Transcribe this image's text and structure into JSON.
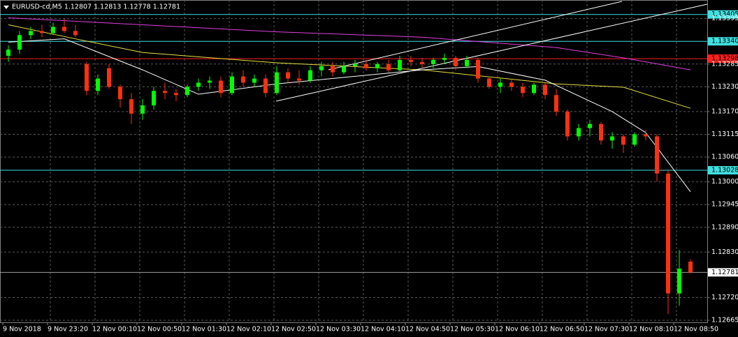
{
  "chart_data": {
    "type": "candlestick",
    "title": "EURUSD-cd,M5  1.12807 1.12813 1.12778 1.12781",
    "ylim": [
      1.1266,
      1.1344
    ],
    "yticks": [
      1.13395,
      1.13285,
      {
        "value": 1.1323,
        "label": "1.13230"
      },
      {
        "value": 1.1317,
        "label": "1.13170"
      },
      1.13115,
      {
        "value": 1.1306,
        "label": "1.13060"
      },
      {
        "value": 1.13,
        "label": "1.13000"
      },
      1.12945,
      {
        "value": 1.1289,
        "label": "1.12890"
      },
      {
        "value": 1.1283,
        "label": "1.12830"
      },
      {
        "value": 1.1272,
        "label": "1.12720"
      },
      1.12665
    ],
    "x_labels": [
      "9 Nov 2018",
      "9 Nov 23:20",
      "12 Nov 00:10",
      "12 Nov 00:50",
      "12 Nov 01:30",
      "12 Nov 02:10",
      "12 Nov 02:50",
      "12 Nov 03:30",
      "12 Nov 04:10",
      "12 Nov 04:50",
      "12 Nov 05:30",
      "12 Nov 06:10",
      "12 Nov 06:50",
      "12 Nov 07:30",
      "12 Nov 08:10",
      "12 Nov 08:50"
    ],
    "grid": true,
    "bull_color": "#00ff00",
    "bear_color": "#ff3010",
    "open": [
      1.13305,
      1.1332,
      1.13355,
      1.13365,
      1.1336,
      1.13375,
      1.13365,
      1.13285,
      1.1322,
      1.13275,
      1.1323,
      1.132,
      1.13165,
      1.13185,
      1.1322,
      1.13215,
      1.1321,
      1.1323,
      1.1324,
      1.13245,
      1.13215,
      1.13255,
      1.1324,
      1.1325,
      1.13215,
      1.13265,
      1.1325,
      1.13245,
      1.1327,
      1.1328,
      1.13265,
      1.1328,
      1.13285,
      1.13275,
      1.13285,
      1.1327,
      1.13295,
      1.1329,
      1.13285,
      1.13295,
      1.133,
      1.1328,
      1.13295,
      1.1325,
      1.1323,
      1.1324,
      1.1323,
      1.13215,
      1.13235,
      1.1321,
      1.1317,
      1.1311,
      1.1313,
      1.1314,
      1.131,
      1.1311,
      1.1309,
      1.13115,
      1.1311,
      1.1302,
      1.1273,
      1.12807
    ],
    "high": [
      1.1333,
      1.13365,
      1.13375,
      1.1338,
      1.13385,
      1.13395,
      1.1338,
      1.1329,
      1.1326,
      1.13285,
      1.13235,
      1.13215,
      1.132,
      1.1323,
      1.1324,
      1.13225,
      1.13235,
      1.1325,
      1.13255,
      1.13255,
      1.13265,
      1.1327,
      1.1326,
      1.1326,
      1.1328,
      1.13275,
      1.1327,
      1.1328,
      1.1329,
      1.1329,
      1.1329,
      1.13295,
      1.13295,
      1.1329,
      1.13295,
      1.13305,
      1.13305,
      1.133,
      1.133,
      1.1331,
      1.13305,
      1.13305,
      1.133,
      1.13255,
      1.1325,
      1.1325,
      1.1324,
      1.1324,
      1.1324,
      1.13225,
      1.13175,
      1.1314,
      1.1315,
      1.13145,
      1.1312,
      1.13115,
      1.1312,
      1.13125,
      1.13115,
      1.1303,
      1.12835,
      1.12813
    ],
    "low": [
      1.1329,
      1.1331,
      1.13345,
      1.1335,
      1.13355,
      1.1336,
      1.1335,
      1.1321,
      1.1321,
      1.13225,
      1.1318,
      1.1314,
      1.1315,
      1.13175,
      1.132,
      1.13195,
      1.13205,
      1.1322,
      1.13225,
      1.13205,
      1.1321,
      1.1323,
      1.1323,
      1.13205,
      1.1321,
      1.1324,
      1.13235,
      1.1324,
      1.13255,
      1.13255,
      1.1326,
      1.13265,
      1.1327,
      1.13265,
      1.13265,
      1.13265,
      1.1328,
      1.13275,
      1.13275,
      1.13285,
      1.1327,
      1.13275,
      1.1324,
      1.13225,
      1.13215,
      1.1322,
      1.13205,
      1.1321,
      1.132,
      1.1316,
      1.131,
      1.131,
      1.1311,
      1.1309,
      1.1308,
      1.1307,
      1.13085,
      1.131,
      1.13,
      1.1268,
      1.127,
      1.12778
    ],
    "close": [
      1.1332,
      1.13355,
      1.13365,
      1.1336,
      1.13375,
      1.13365,
      1.13355,
      1.1322,
      1.1325,
      1.1323,
      1.132,
      1.13165,
      1.13185,
      1.1322,
      1.13215,
      1.1321,
      1.1323,
      1.1324,
      1.13245,
      1.13215,
      1.13255,
      1.1324,
      1.1325,
      1.13215,
      1.13265,
      1.1325,
      1.13245,
      1.1327,
      1.1328,
      1.13265,
      1.1328,
      1.13285,
      1.13275,
      1.13285,
      1.1327,
      1.13295,
      1.1329,
      1.13285,
      1.13295,
      1.133,
      1.1328,
      1.13295,
      1.1325,
      1.1323,
      1.1324,
      1.1323,
      1.13215,
      1.13235,
      1.1321,
      1.1317,
      1.1311,
      1.1313,
      1.1314,
      1.131,
      1.1311,
      1.1309,
      1.13115,
      1.1311,
      1.1302,
      1.1273,
      1.1279,
      1.12781
    ],
    "series": [
      {
        "color": "#e040e0",
        "x": [
          0,
          12,
          24,
          37,
          49,
          55,
          61
        ],
        "values": [
          1.13397,
          1.1338,
          1.13363,
          1.1335,
          1.13325,
          1.133,
          1.13271
        ]
      },
      {
        "color": "#e8e040",
        "x": [
          0,
          6,
          12,
          24,
          37,
          49,
          55,
          61
        ],
        "values": [
          1.1338,
          1.13346,
          1.13313,
          1.13288,
          1.13271,
          1.13237,
          1.13229,
          1.13178
        ]
      },
      {
        "color": "#ffffff",
        "x": [
          0,
          5,
          12,
          17,
          24,
          37,
          42,
          48,
          54,
          57,
          61
        ],
        "values": [
          1.13338,
          1.13346,
          1.13271,
          1.13212,
          1.13237,
          1.13271,
          1.13279,
          1.13246,
          1.1317,
          1.13119,
          1.12976
        ]
      }
    ],
    "levels": [
      {
        "value": 1.13405,
        "color": "#40e0e0"
      },
      {
        "value": 1.1334,
        "label": "1.13340",
        "color": "#40e0e0"
      },
      {
        "value": 1.13298,
        "color": "#ff2020"
      },
      {
        "value": 1.13028,
        "color": "#40e0e0"
      },
      {
        "value": 1.12781,
        "color": "#a0a0a0",
        "box": "#ffffff"
      }
    ]
  }
}
